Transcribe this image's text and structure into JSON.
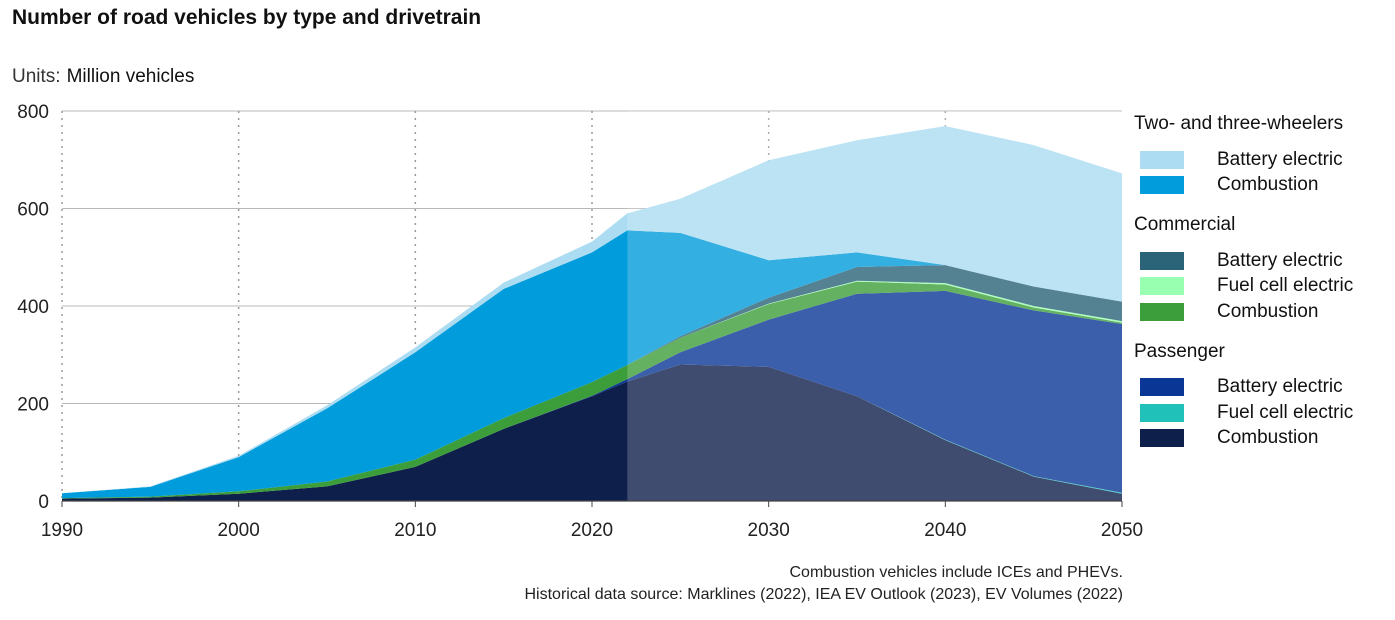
{
  "title": "Number of road vehicles by type and drivetrain",
  "units": {
    "label": "Units:",
    "value": "Million vehicles"
  },
  "notes": [
    "Combustion vehicles include ICEs and PHEVs.",
    "Historical data source: Marklines (2022), IEA EV Outlook (2023), EV Volumes (2022)"
  ],
  "legend": [
    {
      "group": "Two- and three-wheelers",
      "items": [
        {
          "label": "Battery electric",
          "color": "#abdcf2",
          "series": "tw_bev"
        },
        {
          "label": "Combustion",
          "color": "#009cdb",
          "series": "tw_comb"
        }
      ]
    },
    {
      "group": "Commercial",
      "items": [
        {
          "label": "Battery electric",
          "color": "#2b6378",
          "series": "com_bev"
        },
        {
          "label": "Fuel cell electric",
          "color": "#99ffb0",
          "series": "com_fcev"
        },
        {
          "label": "Combustion",
          "color": "#3c9e3a",
          "series": "com_comb"
        }
      ]
    },
    {
      "group": "Passenger",
      "items": [
        {
          "label": "Battery electric",
          "color": "#0a3796",
          "series": "pass_bev"
        },
        {
          "label": "Fuel cell electric",
          "color": "#1fc1b8",
          "series": "pass_fcev"
        },
        {
          "label": "Combustion",
          "color": "#0f1f4b",
          "series": "pass_comb"
        }
      ]
    }
  ],
  "chart_data": {
    "type": "area",
    "stacked": true,
    "title": "Number of road vehicles by type and drivetrain",
    "ylabel": "Million vehicles",
    "xlim": [
      1990,
      2050
    ],
    "ylim": [
      0,
      800
    ],
    "yticks": [
      0,
      200,
      400,
      600,
      800
    ],
    "xticks": [
      1990,
      2000,
      2010,
      2020,
      2030,
      2040,
      2050
    ],
    "forecast_start": 2022,
    "x": [
      1990,
      1995,
      2000,
      2005,
      2010,
      2015,
      2020,
      2022,
      2025,
      2030,
      2035,
      2040,
      2045,
      2050
    ],
    "series": [
      {
        "key": "pass_comb",
        "name": "Passenger - Combustion",
        "color": "#0f1f4b",
        "values": [
          5,
          7,
          15,
          30,
          70,
          148,
          215,
          245,
          280,
          275,
          215,
          125,
          50,
          15
        ]
      },
      {
        "key": "pass_fcev",
        "name": "Passenger - Fuel cell electric",
        "color": "#1fc1b8",
        "values": [
          0,
          0,
          0,
          0,
          0,
          0,
          0,
          0,
          0,
          0,
          0,
          1,
          1,
          2
        ]
      },
      {
        "key": "pass_bev",
        "name": "Passenger - Battery electric",
        "color": "#0a3796",
        "values": [
          0,
          0,
          0,
          0,
          0,
          0,
          1,
          5,
          25,
          97,
          210,
          305,
          340,
          346
        ]
      },
      {
        "key": "com_comb",
        "name": "Commercial - Combustion",
        "color": "#3c9e3a",
        "values": [
          1,
          2,
          5,
          10,
          15,
          22,
          28,
          29,
          30,
          32,
          25,
          13,
          6,
          3
        ]
      },
      {
        "key": "com_fcev",
        "name": "Commercial - Fuel cell electric",
        "color": "#99ffb0",
        "values": [
          0,
          0,
          0,
          0,
          0,
          0,
          0,
          0,
          0,
          1,
          2,
          3,
          3,
          3
        ]
      },
      {
        "key": "com_bev",
        "name": "Commercial - Battery electric",
        "color": "#2b6378",
        "values": [
          0,
          0,
          0,
          0,
          0,
          0,
          0,
          0,
          3,
          12,
          28,
          37,
          40,
          40
        ]
      },
      {
        "key": "tw_comb",
        "name": "Two- and three-wheelers - Combustion",
        "color": "#009cdb",
        "values": [
          10,
          20,
          70,
          150,
          220,
          265,
          266,
          276,
          212,
          77,
          30,
          0,
          0,
          0
        ]
      },
      {
        "key": "tw_bev",
        "name": "Two- and three-wheelers - Battery electric",
        "color": "#abdcf2",
        "values": [
          0,
          1,
          3,
          6,
          10,
          13,
          22,
          35,
          70,
          205,
          230,
          285,
          290,
          263
        ]
      }
    ]
  }
}
